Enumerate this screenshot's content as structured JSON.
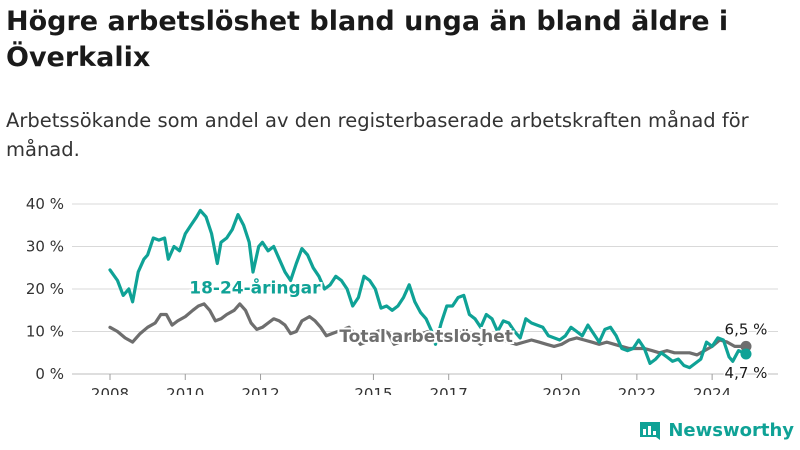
{
  "header": {
    "title": "Högre arbetslöshet bland unga än bland äldre i Överkalix",
    "subtitle": "Arbetssökande som andel av den registerbaserade arbetskraften månad för månad."
  },
  "brand": {
    "name": "Newsworthy",
    "icon": "bar-chart-logo-icon"
  },
  "colors": {
    "youth": "#0fa296",
    "total": "#6e6e6e",
    "grid": "#d9d9d9",
    "text": "#333333"
  },
  "chart_data": {
    "type": "line",
    "title": "Högre arbetslöshet bland unga än bland äldre i Överkalix",
    "subtitle": "Arbetssökande som andel av den registerbaserade arbetskraften månad för månad.",
    "xlabel": "",
    "ylabel": "",
    "x_range": [
      2008.0,
      2024.9
    ],
    "ylim": [
      0,
      40
    ],
    "y_ticks": [
      0,
      10,
      20,
      30,
      40
    ],
    "y_tick_labels": [
      "0 %",
      "10 %",
      "20 %",
      "30 %",
      "40 %"
    ],
    "x_ticks": [
      2008,
      2010,
      2012,
      2015,
      2017,
      2020,
      2022,
      2024
    ],
    "x_tick_labels": [
      "2008",
      "2010",
      "2012",
      "2015",
      "2017",
      "2020",
      "2022",
      "2024"
    ],
    "grid": true,
    "legend": "inline labels",
    "series": [
      {
        "name": "18-24-åringar",
        "color": "#0fa296",
        "end_label": "4,7 %",
        "points": [
          [
            2008.0,
            24.5
          ],
          [
            2008.2,
            22
          ],
          [
            2008.35,
            18.5
          ],
          [
            2008.5,
            20
          ],
          [
            2008.6,
            17
          ],
          [
            2008.75,
            24
          ],
          [
            2008.9,
            27
          ],
          [
            2009.0,
            28
          ],
          [
            2009.15,
            32
          ],
          [
            2009.3,
            31.5
          ],
          [
            2009.45,
            32
          ],
          [
            2009.55,
            27
          ],
          [
            2009.7,
            30
          ],
          [
            2009.85,
            29
          ],
          [
            2010.0,
            33
          ],
          [
            2010.15,
            35
          ],
          [
            2010.3,
            37
          ],
          [
            2010.4,
            38.5
          ],
          [
            2010.55,
            37
          ],
          [
            2010.7,
            33
          ],
          [
            2010.85,
            26
          ],
          [
            2010.95,
            31
          ],
          [
            2011.1,
            32
          ],
          [
            2011.25,
            34
          ],
          [
            2011.4,
            37.5
          ],
          [
            2011.55,
            35
          ],
          [
            2011.7,
            31
          ],
          [
            2011.8,
            24
          ],
          [
            2011.95,
            30
          ],
          [
            2012.05,
            31
          ],
          [
            2012.2,
            29
          ],
          [
            2012.35,
            30
          ],
          [
            2012.5,
            27
          ],
          [
            2012.65,
            24
          ],
          [
            2012.8,
            22
          ],
          [
            2012.95,
            26
          ],
          [
            2013.1,
            29.5
          ],
          [
            2013.25,
            28
          ],
          [
            2013.4,
            25
          ],
          [
            2013.55,
            23
          ],
          [
            2013.7,
            20
          ],
          [
            2013.85,
            21
          ],
          [
            2014.0,
            23
          ],
          [
            2014.15,
            22
          ],
          [
            2014.3,
            20
          ],
          [
            2014.45,
            16
          ],
          [
            2014.6,
            18
          ],
          [
            2014.75,
            23
          ],
          [
            2014.9,
            22
          ],
          [
            2015.05,
            20
          ],
          [
            2015.2,
            15.5
          ],
          [
            2015.35,
            16
          ],
          [
            2015.5,
            15
          ],
          [
            2015.65,
            16
          ],
          [
            2015.8,
            18
          ],
          [
            2015.95,
            21
          ],
          [
            2016.1,
            17
          ],
          [
            2016.25,
            14.5
          ],
          [
            2016.4,
            13
          ],
          [
            2016.55,
            10
          ],
          [
            2016.65,
            7
          ],
          [
            2016.8,
            12
          ],
          [
            2016.95,
            16
          ],
          [
            2017.1,
            16
          ],
          [
            2017.25,
            18
          ],
          [
            2017.4,
            18.5
          ],
          [
            2017.55,
            14
          ],
          [
            2017.7,
            13
          ],
          [
            2017.85,
            11
          ],
          [
            2018.0,
            14
          ],
          [
            2018.15,
            13
          ],
          [
            2018.3,
            10
          ],
          [
            2018.45,
            12.5
          ],
          [
            2018.6,
            12
          ],
          [
            2018.75,
            10
          ],
          [
            2018.9,
            8.5
          ],
          [
            2019.05,
            13
          ],
          [
            2019.2,
            12
          ],
          [
            2019.35,
            11.5
          ],
          [
            2019.5,
            11
          ],
          [
            2019.65,
            9
          ],
          [
            2019.8,
            8.5
          ],
          [
            2019.95,
            8
          ],
          [
            2020.1,
            9
          ],
          [
            2020.25,
            11
          ],
          [
            2020.4,
            10
          ],
          [
            2020.55,
            9
          ],
          [
            2020.7,
            11.5
          ],
          [
            2020.85,
            9.5
          ],
          [
            2021.0,
            7.5
          ],
          [
            2021.15,
            10.5
          ],
          [
            2021.3,
            11
          ],
          [
            2021.45,
            9
          ],
          [
            2021.6,
            6
          ],
          [
            2021.75,
            5.5
          ],
          [
            2021.9,
            6
          ],
          [
            2022.05,
            8
          ],
          [
            2022.2,
            6
          ],
          [
            2022.35,
            2.5
          ],
          [
            2022.5,
            3.5
          ],
          [
            2022.65,
            5
          ],
          [
            2022.8,
            4
          ],
          [
            2022.95,
            3
          ],
          [
            2023.1,
            3.5
          ],
          [
            2023.25,
            2
          ],
          [
            2023.4,
            1.5
          ],
          [
            2023.55,
            2.5
          ],
          [
            2023.7,
            3.5
          ],
          [
            2023.85,
            7.5
          ],
          [
            2024.0,
            6.5
          ],
          [
            2024.15,
            8.5
          ],
          [
            2024.3,
            8
          ],
          [
            2024.45,
            4
          ],
          [
            2024.55,
            3
          ],
          [
            2024.7,
            5.5
          ],
          [
            2024.9,
            4.7
          ]
        ]
      },
      {
        "name": "Total arbetslöshet",
        "color": "#6e6e6e",
        "end_label": "6,5 %",
        "points": [
          [
            2008.0,
            11
          ],
          [
            2008.2,
            10
          ],
          [
            2008.4,
            8.5
          ],
          [
            2008.6,
            7.5
          ],
          [
            2008.8,
            9.5
          ],
          [
            2009.0,
            11
          ],
          [
            2009.2,
            12
          ],
          [
            2009.35,
            14
          ],
          [
            2009.5,
            14
          ],
          [
            2009.65,
            11.5
          ],
          [
            2009.8,
            12.5
          ],
          [
            2010.0,
            13.5
          ],
          [
            2010.2,
            15
          ],
          [
            2010.35,
            16
          ],
          [
            2010.5,
            16.5
          ],
          [
            2010.65,
            15
          ],
          [
            2010.8,
            12.5
          ],
          [
            2010.95,
            13
          ],
          [
            2011.1,
            14
          ],
          [
            2011.3,
            15
          ],
          [
            2011.45,
            16.5
          ],
          [
            2011.6,
            15
          ],
          [
            2011.75,
            12
          ],
          [
            2011.9,
            10.5
          ],
          [
            2012.05,
            11
          ],
          [
            2012.2,
            12
          ],
          [
            2012.35,
            13
          ],
          [
            2012.5,
            12.5
          ],
          [
            2012.65,
            11.5
          ],
          [
            2012.8,
            9.5
          ],
          [
            2012.95,
            10
          ],
          [
            2013.1,
            12.5
          ],
          [
            2013.3,
            13.5
          ],
          [
            2013.45,
            12.5
          ],
          [
            2013.6,
            11
          ],
          [
            2013.75,
            9
          ],
          [
            2013.9,
            9.5
          ],
          [
            2014.05,
            10
          ],
          [
            2014.2,
            10.5
          ],
          [
            2014.35,
            11
          ],
          [
            2014.5,
            9.5
          ],
          [
            2014.65,
            7
          ],
          [
            2014.8,
            7.5
          ],
          [
            2014.95,
            9
          ],
          [
            2015.1,
            10
          ],
          [
            2015.25,
            10.5
          ],
          [
            2015.4,
            9.5
          ],
          [
            2015.55,
            7
          ],
          [
            2015.7,
            7.5
          ],
          [
            2015.85,
            8
          ],
          [
            2016.0,
            8.5
          ],
          [
            2016.15,
            9
          ],
          [
            2016.3,
            9.5
          ],
          [
            2016.45,
            10
          ],
          [
            2016.6,
            9
          ],
          [
            2016.75,
            8.5
          ],
          [
            2016.9,
            8
          ],
          [
            2017.05,
            9
          ],
          [
            2017.2,
            9.5
          ],
          [
            2017.4,
            10
          ],
          [
            2017.55,
            9
          ],
          [
            2017.7,
            8
          ],
          [
            2017.85,
            7
          ],
          [
            2018.0,
            8
          ],
          [
            2018.2,
            8.5
          ],
          [
            2018.4,
            8
          ],
          [
            2018.6,
            7.5
          ],
          [
            2018.8,
            7
          ],
          [
            2019.0,
            7.5
          ],
          [
            2019.2,
            8
          ],
          [
            2019.4,
            7.5
          ],
          [
            2019.6,
            7
          ],
          [
            2019.8,
            6.5
          ],
          [
            2020.0,
            7
          ],
          [
            2020.2,
            8
          ],
          [
            2020.4,
            8.5
          ],
          [
            2020.6,
            8
          ],
          [
            2020.8,
            7.5
          ],
          [
            2021.0,
            7
          ],
          [
            2021.2,
            7.5
          ],
          [
            2021.4,
            7
          ],
          [
            2021.6,
            6.5
          ],
          [
            2021.8,
            6
          ],
          [
            2022.0,
            6
          ],
          [
            2022.2,
            6
          ],
          [
            2022.4,
            5.5
          ],
          [
            2022.6,
            5
          ],
          [
            2022.8,
            5.5
          ],
          [
            2023.0,
            5
          ],
          [
            2023.2,
            5
          ],
          [
            2023.4,
            5
          ],
          [
            2023.6,
            4.5
          ],
          [
            2023.8,
            5.5
          ],
          [
            2024.0,
            6.5
          ],
          [
            2024.2,
            8
          ],
          [
            2024.4,
            7.5
          ],
          [
            2024.6,
            6.5
          ],
          [
            2024.9,
            6.5
          ]
        ]
      }
    ],
    "annotations": [
      {
        "text": "18-24-åringar",
        "series": "18-24-åringar",
        "x": 2011.85,
        "y": 19
      },
      {
        "text": "Total arbetslöshet",
        "series": "Total arbetslöshet",
        "x": 2016.4,
        "y": 7.5
      }
    ]
  }
}
